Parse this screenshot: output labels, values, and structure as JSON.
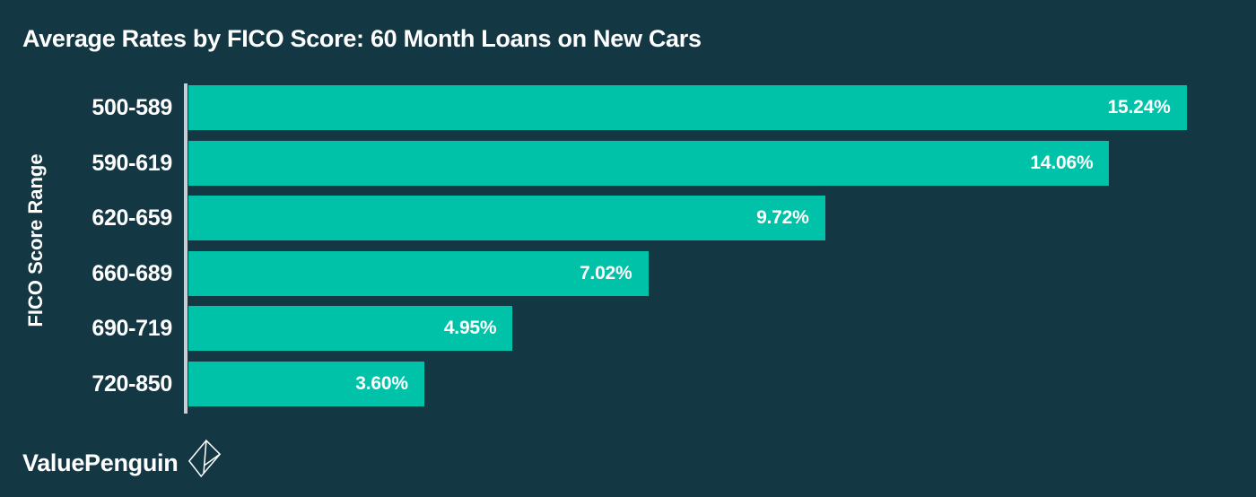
{
  "page": {
    "background_color": "#143744",
    "text_color": "#ffffff",
    "brand": {
      "name": "ValuePenguin",
      "icon": "valuepenguin-origami-penguin-icon"
    }
  },
  "colors": {
    "background": "#143744",
    "bar": "#00C2A8",
    "axis_line": "#c9ced4",
    "text": "#ffffff"
  },
  "chart_data": {
    "type": "bar",
    "orientation": "horizontal",
    "title": "Average Rates by FICO Score: 60 Month Loans on New Cars",
    "xlabel": "",
    "ylabel": "FICO Score Range",
    "categories": [
      "500-589",
      "590-619",
      "620-659",
      "660-689",
      "690-719",
      "720-850"
    ],
    "values": [
      15.24,
      14.06,
      9.72,
      7.02,
      4.95,
      3.6
    ],
    "value_labels": [
      "15.24%",
      "14.06%",
      "9.72%",
      "7.02%",
      "4.95%",
      "3.60%"
    ],
    "xlim": [
      0,
      16.3
    ],
    "grid": false,
    "legend": false,
    "bar_color": "#00C2A8",
    "value_label_position": "inside-end"
  }
}
